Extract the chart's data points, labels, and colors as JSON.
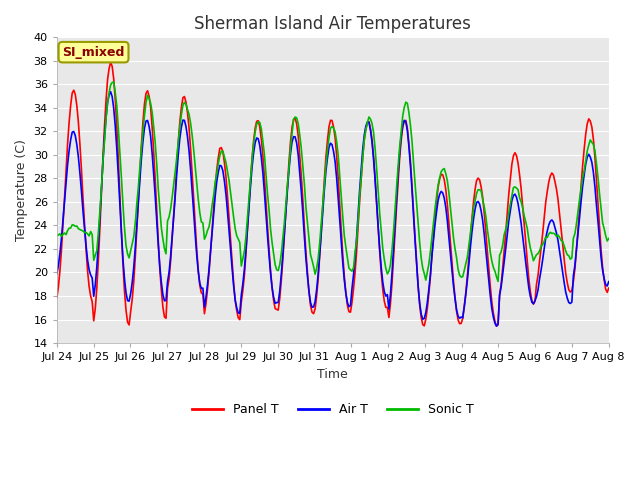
{
  "title": "Sherman Island Air Temperatures",
  "xlabel": "Time",
  "ylabel": "Temperature (C)",
  "ylim": [
    14,
    40
  ],
  "yticks": [
    14,
    16,
    18,
    20,
    22,
    24,
    26,
    28,
    30,
    32,
    34,
    36,
    38,
    40
  ],
  "xtick_labels": [
    "Jul 24",
    "Jul 25",
    "Jul 26",
    "Jul 27",
    "Jul 28",
    "Jul 29",
    "Jul 30",
    "Jul 31",
    "Aug 1",
    "Aug 2",
    "Aug 3",
    "Aug 4",
    "Aug 5",
    "Aug 6",
    "Aug 7",
    "Aug 8"
  ],
  "annotation_text": "SI_mixed",
  "annotation_color": "#8B0000",
  "annotation_bg": "#FFFF99",
  "annotation_edge": "#999900",
  "line_colors": [
    "#FF0000",
    "#0000FF",
    "#00BB00"
  ],
  "line_labels": [
    "Panel T",
    "Air T",
    "Sonic T"
  ],
  "line_width": 1.2,
  "fig_bg": "#FFFFFF",
  "plot_bg": "#E8E8E8",
  "grid_color": "#FFFFFF",
  "title_fontsize": 12,
  "label_fontsize": 9,
  "tick_fontsize": 8,
  "legend_fontsize": 9,
  "n_days": 15,
  "n_points": 360
}
